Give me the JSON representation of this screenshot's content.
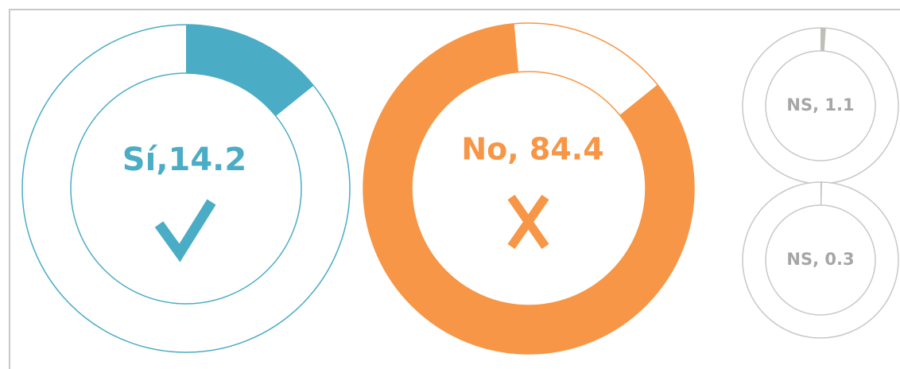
{
  "chart_data": [
    {
      "type": "donut",
      "values": [
        14.2
      ],
      "value_labels": [
        "Sí,14.2"
      ],
      "color": "#4bacc6",
      "ylim": [
        0,
        100
      ]
    },
    {
      "type": "donut",
      "values": [
        84.4
      ],
      "value_labels": [
        "No, 84.4"
      ],
      "color": "#f79646",
      "ylim": [
        0,
        100
      ]
    },
    {
      "type": "donut",
      "values": [
        1.1
      ],
      "value_labels": [
        "NS, 1.1"
      ],
      "color": "#bfbfb8",
      "ylim": [
        0,
        100
      ]
    },
    {
      "type": "donut",
      "values": [
        0.3
      ],
      "value_labels": [
        "NS, 0.3"
      ],
      "color": "#bfbfb8",
      "ylim": [
        0,
        100
      ]
    }
  ]
}
